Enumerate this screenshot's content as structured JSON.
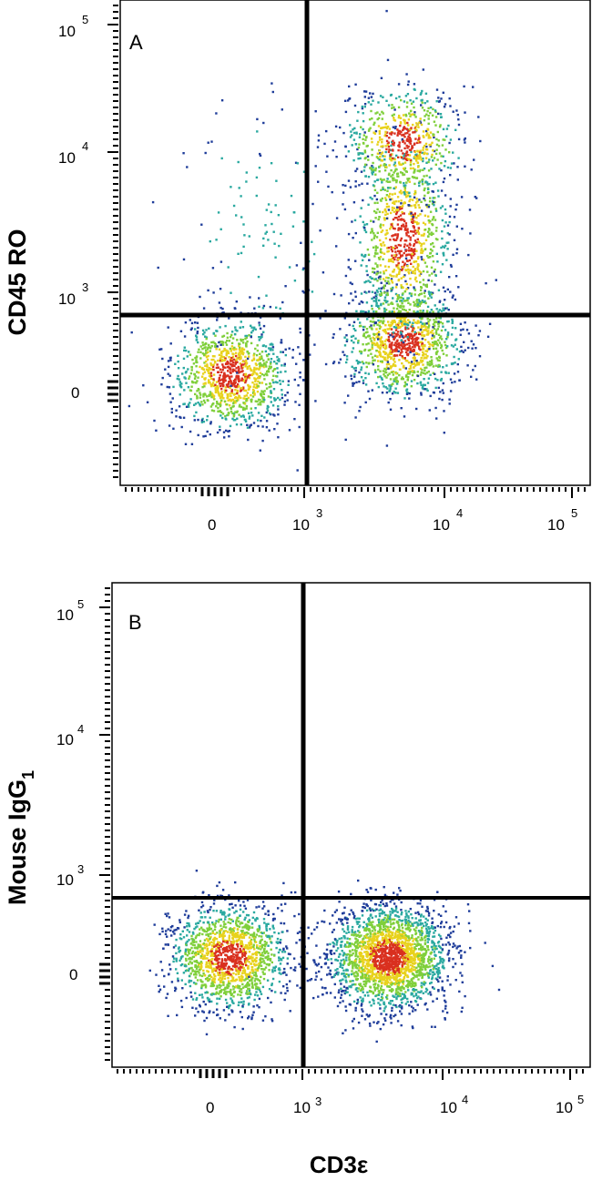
{
  "chart_data": [
    {
      "type": "scatter",
      "panel": "A",
      "ylabel": "CD45 RO",
      "xlabel": "",
      "x_ticks": [
        {
          "value": 0,
          "base": "0",
          "exp": ""
        },
        {
          "value": 1000,
          "base": "10",
          "exp": "3"
        },
        {
          "value": 10000,
          "base": "10",
          "exp": "4"
        },
        {
          "value": 100000,
          "base": "10",
          "exp": "5"
        }
      ],
      "y_ticks": [
        {
          "value": 0,
          "base": "0",
          "exp": ""
        },
        {
          "value": 1000,
          "base": "10",
          "exp": "3"
        },
        {
          "value": 10000,
          "base": "10",
          "exp": "4"
        },
        {
          "value": 100000,
          "base": "10",
          "exp": "5"
        }
      ],
      "scale": "biexponential (logicle)",
      "quadrant_gate": {
        "x": 1000,
        "y": 800
      },
      "populations": [
        {
          "x_center": 50,
          "y_center": 50,
          "spread": "dense",
          "events": 1100
        },
        {
          "x_center": 5000,
          "y_center": 200,
          "spread": "dense",
          "events": 1100
        },
        {
          "x_center": 5000,
          "y_center": 2500,
          "spread": "vertical",
          "events": 900
        },
        {
          "x_center": 5000,
          "y_center": 12000,
          "spread": "dense",
          "events": 600
        },
        {
          "x_center": 200,
          "y_center": 3000,
          "spread": "sparse",
          "events": 120
        }
      ],
      "grid": false,
      "color_scale": [
        "#1f3d9a",
        "#2aa9a0",
        "#7fcf3a",
        "#e8d21c",
        "#d9301f"
      ]
    },
    {
      "type": "scatter",
      "panel": "B",
      "ylabel": "Mouse IgG",
      "ylabel_sub": "1",
      "xlabel": "CD3ε",
      "x_ticks": [
        {
          "value": 0,
          "base": "0",
          "exp": ""
        },
        {
          "value": 1000,
          "base": "10",
          "exp": "3"
        },
        {
          "value": 10000,
          "base": "10",
          "exp": "4"
        },
        {
          "value": 100000,
          "base": "10",
          "exp": "5"
        }
      ],
      "y_ticks": [
        {
          "value": 0,
          "base": "0",
          "exp": ""
        },
        {
          "value": 1000,
          "base": "10",
          "exp": "3"
        },
        {
          "value": 10000,
          "base": "10",
          "exp": "4"
        },
        {
          "value": 100000,
          "base": "10",
          "exp": "5"
        }
      ],
      "scale": "biexponential (logicle)",
      "quadrant_gate": {
        "x": 1000,
        "y": 800
      },
      "populations": [
        {
          "x_center": 50,
          "y_center": 50,
          "spread": "dense",
          "events": 1500
        },
        {
          "x_center": 4000,
          "y_center": 50,
          "spread": "dense",
          "events": 2200
        }
      ],
      "grid": false,
      "color_scale": [
        "#1f3d9a",
        "#2aa9a0",
        "#7fcf3a",
        "#e8d21c",
        "#d9301f"
      ]
    }
  ]
}
